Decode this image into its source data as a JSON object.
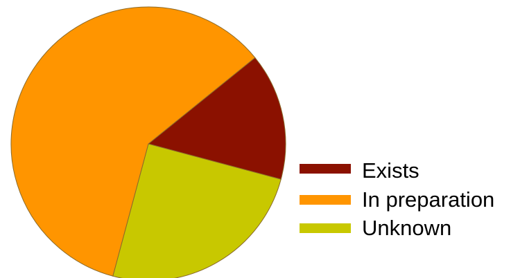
{
  "chart_data": {
    "type": "pie",
    "title": "",
    "slices": [
      {
        "label": "Exists",
        "value": 15,
        "color": "#8b1100"
      },
      {
        "label": "Unknown",
        "value": 25,
        "color": "#c8c800"
      },
      {
        "label": "In preparation",
        "value": 60,
        "color": "#ff9500"
      }
    ],
    "legend": {
      "placement": "bottom-right",
      "entries": [
        {
          "label": "Exists",
          "color": "#8b1100"
        },
        {
          "label": "In preparation",
          "color": "#ff9500"
        },
        {
          "label": "Unknown",
          "color": "#c8c800"
        }
      ]
    }
  }
}
